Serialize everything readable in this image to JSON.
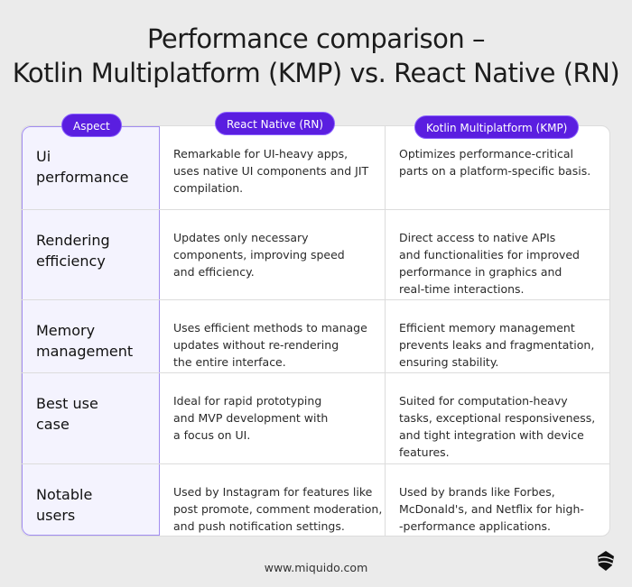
{
  "title": [
    "Performance comparison –",
    "Kotlin Multiplatform (KMP) vs. React Native (RN)"
  ],
  "headers": {
    "aspect": "Aspect",
    "rn": "React Native (RN)",
    "kmp": "Kotlin Multiplatform (KMP)"
  },
  "colors": {
    "accent": "#5a1ee0",
    "aspect_bg": "#f4f3fe",
    "page_bg": "#ebebeb"
  },
  "rows": [
    {
      "aspect": [
        "Ui",
        "performance"
      ],
      "rn": [
        "Remarkable for UI-heavy apps,",
        "uses native UI components and JIT",
        "compilation."
      ],
      "kmp": [
        "Optimizes performance-critical",
        "parts on a platform-specific basis."
      ]
    },
    {
      "aspect": [
        "Rendering",
        "efficiency"
      ],
      "rn": [
        "Updates only necessary",
        "components, improving speed",
        "and efficiency."
      ],
      "kmp": [
        "Direct access to native APIs",
        "and functionalities for improved",
        "performance in graphics and",
        "real-time interactions."
      ]
    },
    {
      "aspect": [
        "Memory",
        "management"
      ],
      "rn": [
        "Uses efficient methods to manage",
        "updates without re-rendering",
        "the entire interface."
      ],
      "kmp": [
        "Efficient memory management",
        "prevents leaks and fragmentation,",
        "ensuring stability."
      ]
    },
    {
      "aspect": [
        "Best use",
        "case"
      ],
      "rn": [
        "Ideal for rapid prototyping",
        "and MVP development with",
        "a focus on UI."
      ],
      "kmp": [
        "Suited for computation-heavy",
        "tasks, exceptional responsiveness,",
        "and tight integration with device",
        "features."
      ]
    },
    {
      "aspect": [
        "Notable",
        "users"
      ],
      "rn": [
        "Used by Instagram for features like",
        "post promote, comment moderation,",
        "and push notification settings."
      ],
      "kmp": [
        "Used by brands like Forbes,",
        "McDonald's, and Netflix for high-",
        "-performance applications."
      ]
    }
  ],
  "footer": "www.miquido.com",
  "logo_icon": "miquido-logo-icon"
}
